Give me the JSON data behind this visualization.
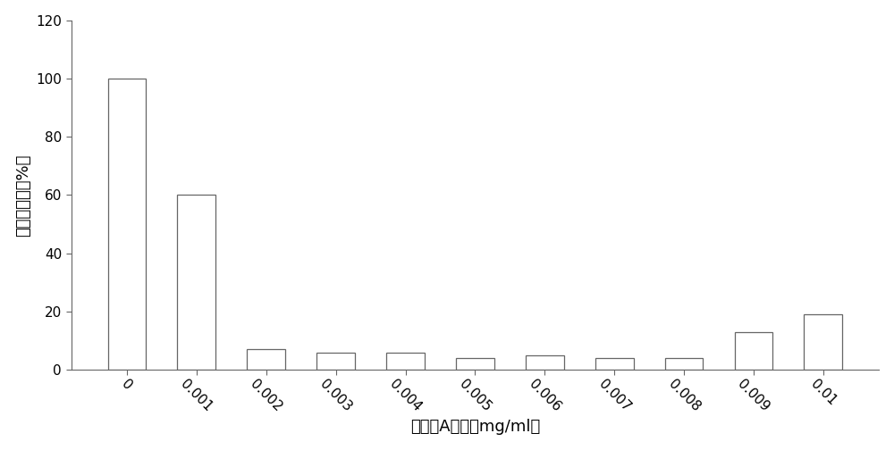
{
  "categories": [
    "0",
    "0.001",
    "0.002",
    "0.003",
    "0.004",
    "0.005",
    "0.006",
    "0.007",
    "0.008",
    "0.009",
    "0.01"
  ],
  "values": [
    100,
    60,
    7,
    6,
    6,
    4,
    5,
    4,
    4,
    13,
    19
  ],
  "bar_color": "#ffffff",
  "bar_edgecolor": "#666666",
  "xlabel": "维生素A用量（mg/ml）",
  "ylabel": "相对酶活力（%）",
  "ylim": [
    0,
    120
  ],
  "yticks": [
    0,
    20,
    40,
    60,
    80,
    100,
    120
  ],
  "background_color": "#ffffff",
  "bar_width": 0.55,
  "xlabel_fontsize": 13,
  "ylabel_fontsize": 13,
  "tick_fontsize": 11,
  "label_rotation": -45
}
